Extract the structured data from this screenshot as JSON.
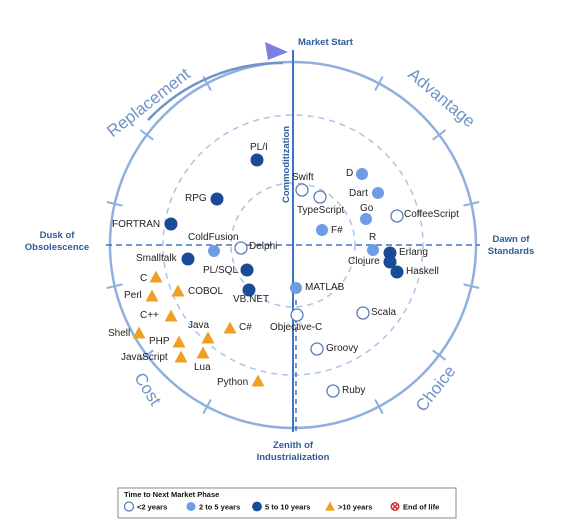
{
  "axes": {
    "top": "Market Start",
    "left_line1": "Dusk of",
    "left_line2": "Obsolescence",
    "right_line1": "Dawn of",
    "right_line2": "Standards",
    "bottom_line1": "Zenith of",
    "bottom_line2": "Industrialization",
    "center": "Commoditization"
  },
  "quadrants": {
    "top_left": "Replacement",
    "top_right": "Advantage",
    "bottom_left": "Cost",
    "bottom_right": "Choice"
  },
  "colors": {
    "lt2": "#ffffff",
    "lt2_stroke": "#5b7fb5",
    "y2to5": "#6d9be6",
    "y5to10": "#1a4b96",
    "gt10": "#f0a020",
    "axis": "#2e5c9a",
    "ring": "#a8c4e6",
    "quad": "#6f93c8"
  },
  "items": [
    {
      "label": "PL/I",
      "cat": "5to10"
    },
    {
      "label": "Swift",
      "cat": "lt2"
    },
    {
      "label": "TypeScript",
      "cat": "lt2"
    },
    {
      "label": "D",
      "cat": "2to5"
    },
    {
      "label": "Dart",
      "cat": "2to5"
    },
    {
      "label": "Go",
      "cat": "2to5"
    },
    {
      "label": "CoffeeScript",
      "cat": "lt2"
    },
    {
      "label": "F#",
      "cat": "2to5"
    },
    {
      "label": "R",
      "cat": "2to5"
    },
    {
      "label": "Erlang",
      "cat": "5to10"
    },
    {
      "label": "Clojure",
      "cat": "5to10"
    },
    {
      "label": "Haskell",
      "cat": "5to10"
    },
    {
      "label": "RPG",
      "cat": "5to10"
    },
    {
      "label": "FORTRAN",
      "cat": "5to10"
    },
    {
      "label": "ColdFusion",
      "cat": "2to5"
    },
    {
      "label": "Delphi",
      "cat": "lt2"
    },
    {
      "label": "Smalltalk",
      "cat": "5to10"
    },
    {
      "label": "PL/SQL",
      "cat": "5to10"
    },
    {
      "label": "VB.NET",
      "cat": "5to10"
    },
    {
      "label": "MATLAB",
      "cat": "2to5"
    },
    {
      "label": "Scala",
      "cat": "lt2"
    },
    {
      "label": "Objective-C",
      "cat": "lt2"
    },
    {
      "label": "Groovy",
      "cat": "lt2"
    },
    {
      "label": "Ruby",
      "cat": "lt2"
    },
    {
      "label": "C",
      "cat": "gt10"
    },
    {
      "label": "Perl",
      "cat": "gt10"
    },
    {
      "label": "COBOL",
      "cat": "gt10"
    },
    {
      "label": "C++",
      "cat": "gt10"
    },
    {
      "label": "Shell",
      "cat": "gt10"
    },
    {
      "label": "Java",
      "cat": "gt10"
    },
    {
      "label": "C#",
      "cat": "gt10"
    },
    {
      "label": "PHP",
      "cat": "gt10"
    },
    {
      "label": "JavaScript",
      "cat": "gt10"
    },
    {
      "label": "Lua",
      "cat": "gt10"
    },
    {
      "label": "Python",
      "cat": "gt10"
    }
  ],
  "legend": {
    "title": "Time to Next Market Phase",
    "items": [
      {
        "key": "lt2",
        "label": "<2 years"
      },
      {
        "key": "2to5",
        "label": "2 to 5 years"
      },
      {
        "key": "5to10",
        "label": "5 to 10 years"
      },
      {
        "key": "gt10",
        "label": ">10 years"
      },
      {
        "key": "eol",
        "label": "End of life"
      }
    ]
  }
}
